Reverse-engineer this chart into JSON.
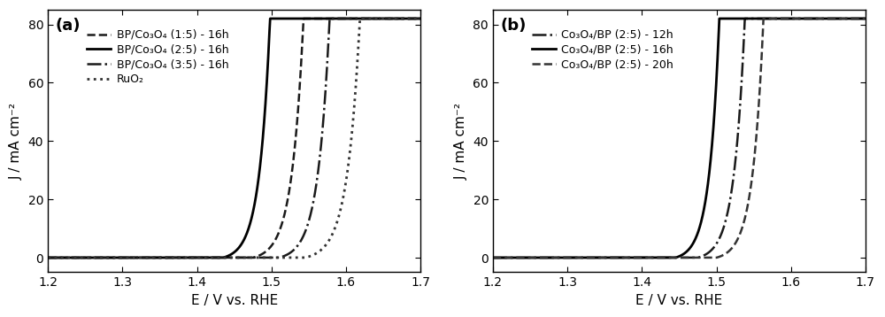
{
  "panel_a": {
    "label": "(a)",
    "xlim": [
      1.2,
      1.7
    ],
    "ylim": [
      -5,
      85
    ],
    "yticks": [
      0,
      20,
      40,
      60,
      80
    ],
    "xticks": [
      1.2,
      1.3,
      1.4,
      1.5,
      1.6,
      1.7
    ],
    "xlabel": "E / V vs. RHE",
    "ylabel": "J / mA cm⁻²",
    "curves": [
      {
        "label": "BP/Co₃O₄ (1:5) - 16h",
        "linestyle": "dashed",
        "linewidth": 1.8,
        "onset": 1.475,
        "scale": 65,
        "color": "#1a1a1a"
      },
      {
        "label": "BP/Co₃O₄ (2:5) - 16h",
        "linestyle": "solid",
        "linewidth": 2.0,
        "onset": 1.435,
        "scale": 70,
        "color": "#000000"
      },
      {
        "label": "BP/Co₃O₄ (3:5) - 16h",
        "linestyle": "dashdot",
        "linewidth": 1.8,
        "onset": 1.51,
        "scale": 65,
        "color": "#1a1a1a"
      },
      {
        "label": "RuO₂",
        "linestyle": "dotted",
        "linewidth": 2.0,
        "onset": 1.545,
        "scale": 60,
        "color": "#333333"
      }
    ]
  },
  "panel_b": {
    "label": "(b)",
    "xlim": [
      1.2,
      1.7
    ],
    "ylim": [
      -5,
      85
    ],
    "yticks": [
      0,
      20,
      40,
      60,
      80
    ],
    "xticks": [
      1.2,
      1.3,
      1.4,
      1.5,
      1.6,
      1.7
    ],
    "xlabel": "E / V vs. RHE",
    "ylabel": "J / mA cm⁻²",
    "curves": [
      {
        "label": "Co₃O₄/BP (2:5) - 12h",
        "linestyle": "dashdot",
        "linewidth": 1.8,
        "onset": 1.475,
        "scale": 70,
        "color": "#1a1a1a"
      },
      {
        "label": "Co₃O₄/BP (2:5) - 16h",
        "linestyle": "solid",
        "linewidth": 2.0,
        "onset": 1.445,
        "scale": 75,
        "color": "#000000"
      },
      {
        "label": "Co₃O₄/BP (2:5) - 20h",
        "linestyle": "dashed",
        "linewidth": 1.8,
        "onset": 1.5,
        "scale": 70,
        "color": "#333333"
      }
    ]
  },
  "figure_bg": "#ffffff",
  "axes_bg": "#ffffff",
  "tick_fontsize": 10,
  "label_fontsize": 11,
  "legend_fontsize": 9,
  "panel_label_fontsize": 13
}
